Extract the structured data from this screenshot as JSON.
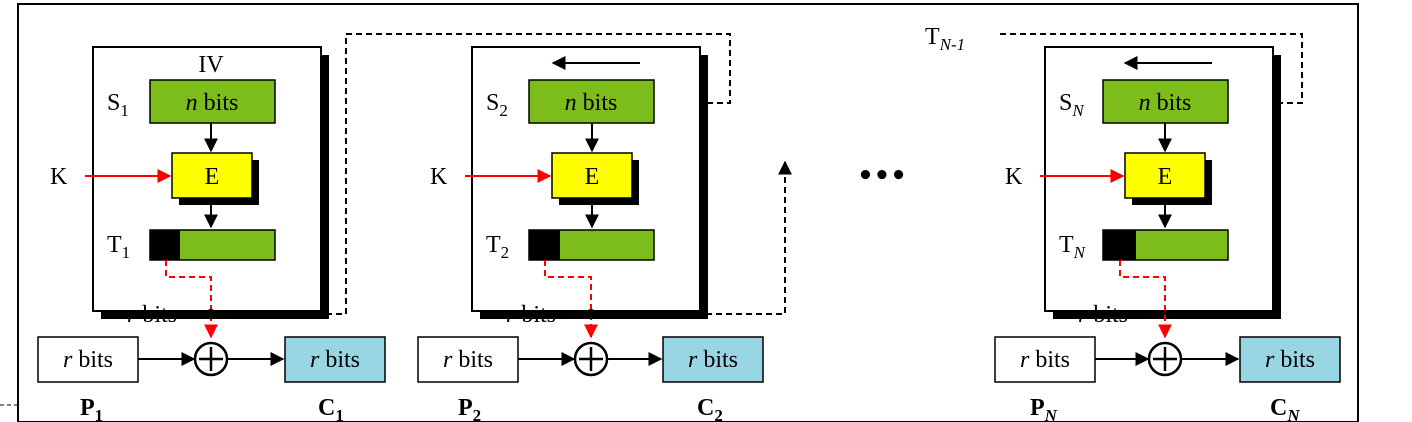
{
  "colors": {
    "register_green": "#7cbd1c",
    "encrypt_yellow": "#ffff00",
    "cipher_blue": "#99d6e3",
    "key_red": "#ff0000",
    "line_black": "#000000"
  },
  "stages": [
    {
      "iv_label": "IV",
      "shift_label": "",
      "s_main": "S",
      "s_sub": "1",
      "t_main": "T",
      "t_sub": "1",
      "p_main": "P",
      "p_sub": "1",
      "c_main": "C",
      "c_sub": "1",
      "key": "K",
      "encrypt": "E",
      "reg_r": "n",
      "reg_txt": " bits",
      "rbits_r": "r",
      "rbits_txt": " bits",
      "p_r": "r",
      "p_txt": " bits",
      "c_r": "r",
      "c_txt": " bits"
    },
    {
      "iv_label": "",
      "s_main": "S",
      "s_sub": "2",
      "t_main": "T",
      "t_sub": "2",
      "p_main": "P",
      "p_sub": "2",
      "c_main": "C",
      "c_sub": "2",
      "key": "K",
      "encrypt": "E",
      "reg_r": "n",
      "reg_txt": " bits",
      "rbits_r": "r",
      "rbits_txt": " bits",
      "p_r": "r",
      "p_txt": " bits",
      "c_r": "r",
      "c_txt": " bits"
    },
    {
      "iv_label": "",
      "s_main": "S",
      "s_sub": "N",
      "t_main": "T",
      "t_sub": "N",
      "p_main": "P",
      "p_sub": "N",
      "c_main": "C",
      "c_sub": "N",
      "key": "K",
      "encrypt": "E",
      "reg_r": "n",
      "reg_txt": " bits",
      "rbits_r": "r",
      "rbits_txt": " bits",
      "p_r": "r",
      "p_txt": " bits",
      "c_r": "r",
      "c_txt": " bits"
    }
  ],
  "feedback_label": {
    "main": "T",
    "sub": "N-1"
  },
  "ellipsis": "•••",
  "xor_symbol": "+"
}
